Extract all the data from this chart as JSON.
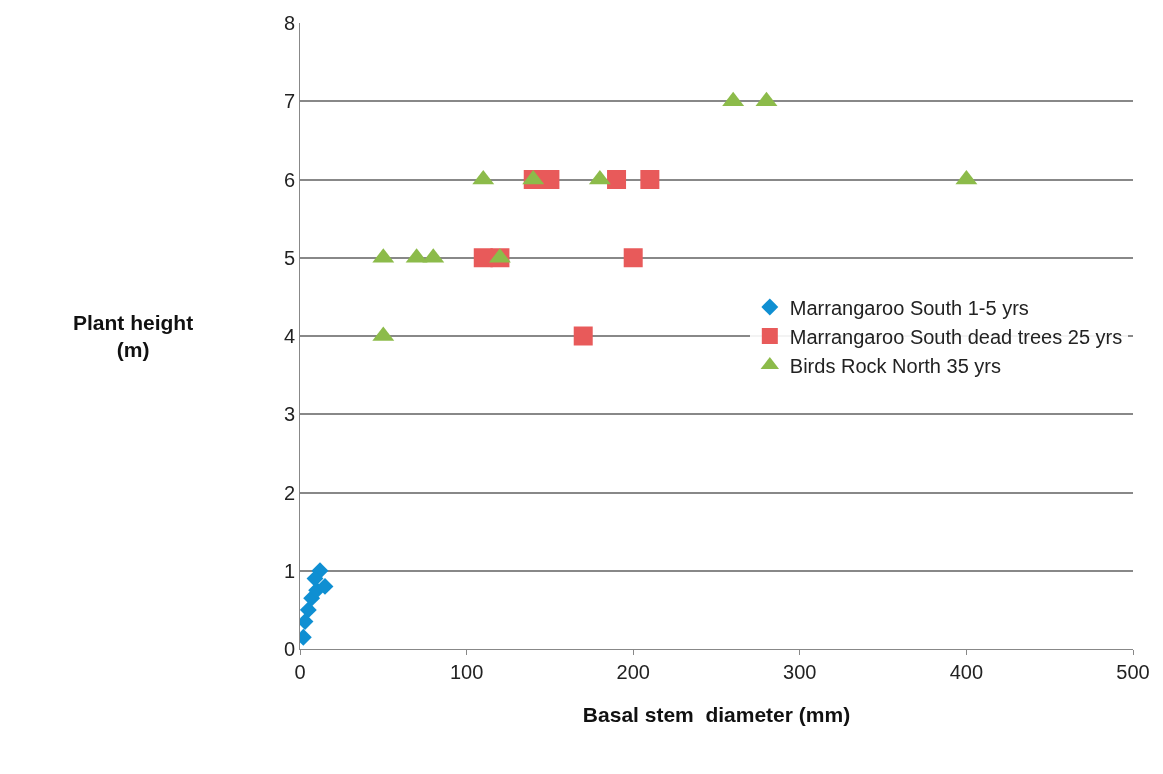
{
  "chart_data": {
    "type": "scatter",
    "xlabel": "Basal stem  diameter (mm)",
    "ylabel": "Plant height (m)",
    "xlim": [
      0,
      500
    ],
    "xticks": [
      0,
      100,
      200,
      300,
      400,
      500
    ],
    "ylim": [
      0,
      8
    ],
    "yticks": [
      0,
      1,
      2,
      3,
      4,
      5,
      6,
      7,
      8
    ],
    "grid": "y",
    "legend": "right",
    "series": [
      {
        "name": "Marrangaroo South 1-5 yrs",
        "color": "#0f8fd2",
        "marker": "diamond",
        "x": [
          2,
          3,
          5,
          7,
          10,
          12,
          15,
          9
        ],
        "values": [
          0.15,
          0.35,
          0.5,
          0.65,
          0.75,
          1.0,
          0.8,
          0.9
        ]
      },
      {
        "name": "Marrangaroo South dead trees 25 yrs",
        "color": "#e85a5a",
        "marker": "square",
        "x": [
          110,
          120,
          140,
          150,
          190,
          210,
          200,
          170
        ],
        "values": [
          5,
          5,
          6,
          6,
          6,
          6,
          5,
          4
        ]
      },
      {
        "name": "Birds Rock North 35 yrs",
        "color": "#8cbb4a",
        "marker": "triangle",
        "x": [
          50,
          50,
          70,
          80,
          110,
          120,
          140,
          180,
          260,
          280,
          400
        ],
        "values": [
          5,
          4,
          5,
          5,
          6,
          5,
          6,
          6,
          7,
          7,
          6
        ]
      }
    ]
  }
}
